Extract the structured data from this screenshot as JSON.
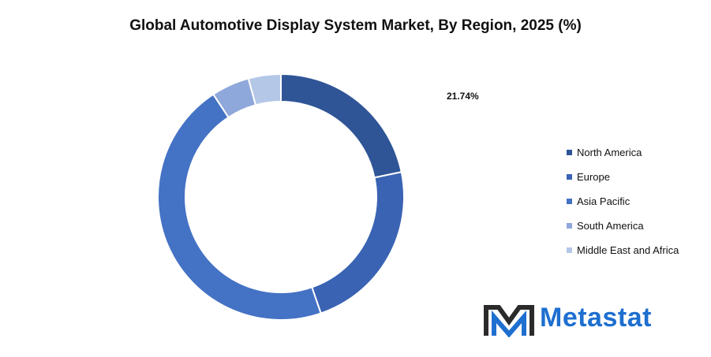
{
  "chart_data": {
    "type": "pie",
    "title": "Global Automotive Display System Market, By Region, 2025 (%)",
    "categories": [
      "North America",
      "Europe",
      "Asia Pacific",
      "South America",
      "Middle East and Africa"
    ],
    "values": [
      21.74,
      23.0,
      46.0,
      5.0,
      4.26
    ],
    "colors": [
      "#2f5597",
      "#3a63b3",
      "#4472c4",
      "#8fa8db",
      "#b4c7e7"
    ],
    "donut": true,
    "legend_position": "right",
    "data_labels": [
      {
        "category": "North America",
        "text": "21.74%"
      }
    ]
  },
  "brand": {
    "name": "Metastat",
    "logo_icon": "metastat-m-logo-icon",
    "text_color": "#1e6fd0"
  }
}
